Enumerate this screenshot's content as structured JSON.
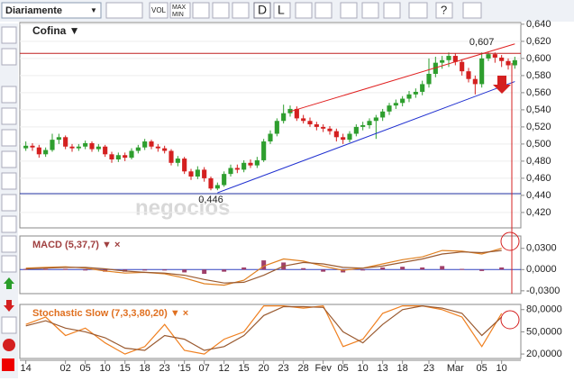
{
  "toolbar": {
    "period": "Diariamente",
    "vol": "VOL",
    "max": "MAX",
    "min": "MIN",
    "day": "D",
    "line": "L",
    "help": "?"
  },
  "watermark": "negocios",
  "chart_data": [
    {
      "type": "candlestick",
      "title": "Cofina ▼",
      "up_color": "#2e9e2e",
      "down_color": "#d42020",
      "grid": true,
      "categories": [
        "14",
        null,
        null,
        null,
        null,
        null,
        "02",
        null,
        null,
        "05",
        null,
        null,
        "10",
        null,
        null,
        "15",
        null,
        null,
        "18",
        null,
        null,
        "23",
        null,
        null,
        "'15",
        null,
        null,
        "07",
        null,
        null,
        "12",
        null,
        null,
        "15",
        null,
        null,
        "20",
        null,
        null,
        "23",
        null,
        null,
        "28",
        null,
        null,
        "Fev",
        null,
        null,
        "05",
        null,
        null,
        "10",
        null,
        null,
        "13",
        null,
        null,
        "18",
        null,
        null,
        null,
        "23",
        null,
        null,
        null,
        "Mar",
        null,
        null,
        null,
        "05",
        null,
        null,
        "10",
        null,
        null
      ],
      "open": [
        0.495,
        0.498,
        0.496,
        0.488,
        0.493,
        0.505,
        0.508,
        0.497,
        0.495,
        0.497,
        0.501,
        0.494,
        0.497,
        0.488,
        0.482,
        0.487,
        0.484,
        0.492,
        0.496,
        0.503,
        0.497,
        0.495,
        0.492,
        0.478,
        0.483,
        0.468,
        0.462,
        0.47,
        0.46,
        0.448,
        0.452,
        0.465,
        0.472,
        0.47,
        0.478,
        0.475,
        0.481,
        0.503,
        0.512,
        0.527,
        0.536,
        0.541,
        0.53,
        0.527,
        0.523,
        0.52,
        0.518,
        0.515,
        0.508,
        0.505,
        0.512,
        0.52,
        0.522,
        0.527,
        0.531,
        0.538,
        0.545,
        0.548,
        0.553,
        0.558,
        0.561,
        0.57,
        0.582,
        0.595,
        0.598,
        0.603,
        0.596,
        0.585,
        0.576,
        0.57,
        0.6,
        0.605,
        0.601,
        0.597,
        0.592
      ],
      "high": [
        0.503,
        0.501,
        0.499,
        0.496,
        0.512,
        0.512,
        0.51,
        0.5,
        0.5,
        0.504,
        0.503,
        0.5,
        0.499,
        0.491,
        0.49,
        0.49,
        0.495,
        0.499,
        0.506,
        0.505,
        0.5,
        0.498,
        0.494,
        0.486,
        0.485,
        0.471,
        0.474,
        0.473,
        0.462,
        0.455,
        0.468,
        0.476,
        0.476,
        0.481,
        0.482,
        0.485,
        0.506,
        0.516,
        0.53,
        0.546,
        0.545,
        0.544,
        0.534,
        0.531,
        0.526,
        0.523,
        0.521,
        0.518,
        0.512,
        0.515,
        0.523,
        0.526,
        0.53,
        0.534,
        0.541,
        0.548,
        0.552,
        0.556,
        0.562,
        0.565,
        0.574,
        0.6,
        0.602,
        0.603,
        0.607,
        0.606,
        0.599,
        0.589,
        0.58,
        0.607,
        0.607,
        0.607,
        0.604,
        0.6,
        0.602
      ],
      "low": [
        0.492,
        0.492,
        0.484,
        0.485,
        0.491,
        0.5,
        0.494,
        0.491,
        0.492,
        0.494,
        0.491,
        0.491,
        0.485,
        0.478,
        0.479,
        0.48,
        0.482,
        0.489,
        0.493,
        0.494,
        0.491,
        0.489,
        0.475,
        0.474,
        0.465,
        0.458,
        0.459,
        0.456,
        0.446,
        0.446,
        0.45,
        0.462,
        0.466,
        0.467,
        0.472,
        0.472,
        0.479,
        0.5,
        0.509,
        0.524,
        0.532,
        0.527,
        0.524,
        0.52,
        0.516,
        0.514,
        0.511,
        0.503,
        0.5,
        0.502,
        0.509,
        0.516,
        0.518,
        0.506,
        0.527,
        0.534,
        0.541,
        0.544,
        0.549,
        0.554,
        0.557,
        0.566,
        0.578,
        0.588,
        0.59,
        0.592,
        0.58,
        0.572,
        0.558,
        0.566,
        0.597,
        0.595,
        0.59,
        0.587,
        0.588
      ],
      "close": [
        0.498,
        0.496,
        0.488,
        0.493,
        0.505,
        0.508,
        0.497,
        0.495,
        0.497,
        0.501,
        0.494,
        0.497,
        0.488,
        0.482,
        0.487,
        0.484,
        0.492,
        0.496,
        0.503,
        0.497,
        0.495,
        0.492,
        0.478,
        0.483,
        0.468,
        0.462,
        0.47,
        0.46,
        0.448,
        0.452,
        0.465,
        0.472,
        0.47,
        0.478,
        0.475,
        0.481,
        0.503,
        0.512,
        0.527,
        0.536,
        0.541,
        0.53,
        0.527,
        0.523,
        0.52,
        0.518,
        0.515,
        0.508,
        0.505,
        0.512,
        0.52,
        0.522,
        0.527,
        0.531,
        0.538,
        0.545,
        0.548,
        0.553,
        0.558,
        0.561,
        0.57,
        0.582,
        0.595,
        0.598,
        0.603,
        0.596,
        0.585,
        0.576,
        0.57,
        0.6,
        0.605,
        0.601,
        0.597,
        0.592,
        0.598
      ],
      "ylim": [
        0.402,
        0.642
      ],
      "yticks": [
        {
          "value": 0.42,
          "label": "0,420"
        },
        {
          "value": 0.44,
          "label": "0,440"
        },
        {
          "value": 0.46,
          "label": "0,460"
        },
        {
          "value": 0.48,
          "label": "0,480"
        },
        {
          "value": 0.5,
          "label": "0,500"
        },
        {
          "value": 0.52,
          "label": "0,520"
        },
        {
          "value": 0.54,
          "label": "0,540"
        },
        {
          "value": 0.56,
          "label": "0,560"
        },
        {
          "value": 0.58,
          "label": "0,580"
        },
        {
          "value": 0.6,
          "label": "0,600"
        },
        {
          "value": 0.62,
          "label": "0,620"
        },
        {
          "value": 0.64,
          "label": "0,640"
        }
      ],
      "trendlines": [
        {
          "color": "#e02020",
          "x": [
            40,
            74
          ],
          "y": [
            0.538,
            0.617
          ]
        },
        {
          "color": "#2030d0",
          "x": [
            29,
            74
          ],
          "y": [
            0.443,
            0.573
          ]
        }
      ],
      "hlines": [
        {
          "color": "#c02020",
          "value": 0.606
        },
        {
          "color": "#2030a0",
          "value": 0.442
        }
      ],
      "annotations": [
        {
          "value": 0.607,
          "label": "0,607",
          "x": 69,
          "side": "above"
        },
        {
          "value": 0.446,
          "label": "0,446",
          "x": 28,
          "side": "below"
        }
      ]
    },
    {
      "type": "macd",
      "title": "MACD (5,37,7) ▼ ×",
      "x": [
        0,
        3,
        6,
        9,
        12,
        15,
        18,
        21,
        24,
        27,
        30,
        33,
        36,
        39,
        42,
        45,
        48,
        51,
        54,
        57,
        60,
        63,
        66,
        69,
        72
      ],
      "series": [
        {
          "name": "MACD",
          "color": "#e08020",
          "values": [
            0.002,
            0.003,
            0.004,
            0.002,
            -0.002,
            -0.005,
            -0.004,
            -0.006,
            -0.012,
            -0.02,
            -0.022,
            -0.015,
            0.005,
            0.015,
            0.012,
            0.005,
            -0.001,
            0.002,
            0.008,
            0.014,
            0.018,
            0.027,
            0.026,
            0.022,
            0.03
          ]
        },
        {
          "name": "Signal",
          "color": "#9a5a30",
          "values": [
            0.001,
            0.002,
            0.003,
            0.003,
            0.001,
            -0.002,
            -0.004,
            -0.005,
            -0.008,
            -0.014,
            -0.019,
            -0.018,
            -0.008,
            0.005,
            0.01,
            0.008,
            0.003,
            0.002,
            0.005,
            0.01,
            0.015,
            0.022,
            0.025,
            0.024,
            0.027
          ]
        }
      ],
      "histogram": {
        "color": "#a0406a",
        "values": [
          0.001,
          0.001,
          0.001,
          -0.001,
          -0.003,
          -0.003,
          0,
          -0.001,
          -0.004,
          -0.006,
          -0.003,
          0.003,
          0.013,
          0.01,
          0.002,
          -0.003,
          -0.004,
          0,
          0.003,
          0.004,
          0.003,
          0.005,
          0.001,
          -0.002,
          0.003
        ]
      },
      "ylim": [
        -0.034,
        0.0475
      ],
      "yticks": [
        {
          "value": 0.03,
          "label": "0,0300"
        },
        {
          "value": 0,
          "label": "0,0000"
        },
        {
          "value": -0.03,
          "label": "-0,0300"
        }
      ]
    },
    {
      "type": "stochastic",
      "title": "Stochastic Slow (7,3,3,80,20) ▼ ×",
      "x": [
        0,
        3,
        6,
        9,
        12,
        15,
        18,
        21,
        24,
        27,
        30,
        33,
        36,
        39,
        42,
        45,
        48,
        51,
        54,
        57,
        60,
        63,
        66,
        69,
        72
      ],
      "series": [
        {
          "name": "%K",
          "color": "#f08020",
          "values": [
            60,
            70,
            45,
            55,
            35,
            20,
            30,
            60,
            25,
            20,
            40,
            50,
            85,
            85,
            82,
            85,
            30,
            40,
            75,
            85,
            85,
            80,
            70,
            30,
            75
          ]
        },
        {
          "name": "%D",
          "color": "#9a5a30",
          "values": [
            58,
            65,
            55,
            50,
            42,
            28,
            25,
            45,
            40,
            25,
            30,
            45,
            72,
            84,
            84,
            83,
            50,
            35,
            60,
            80,
            85,
            82,
            75,
            45,
            70
          ]
        }
      ],
      "ylim": [
        14,
        87
      ],
      "yticks": [
        {
          "value": 80,
          "label": "80,0000"
        },
        {
          "value": 50,
          "label": "50,0000"
        },
        {
          "value": 20,
          "label": "20,0000"
        }
      ]
    }
  ]
}
